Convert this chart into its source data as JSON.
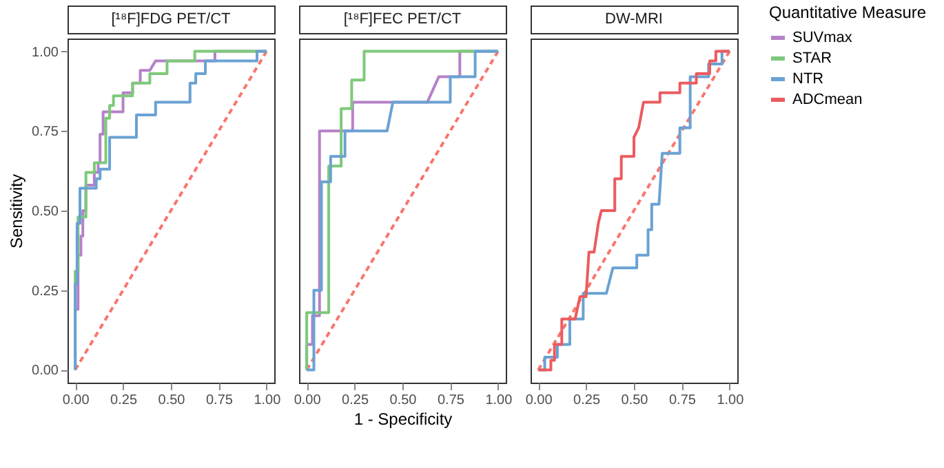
{
  "chart_data": [
    {
      "type": "line",
      "title": "[¹⁸F]FDG PET/CT",
      "ylabel": "Sensitivity",
      "legend_title": "Quantitative Measure",
      "legend": "right",
      "tick_labels": true,
      "grid": false,
      "xlim": [
        -0.04,
        1.04
      ],
      "ylim": [
        -0.04,
        1.04
      ],
      "xticks": [
        {
          "value": 0,
          "label": "0.00"
        },
        {
          "value": 0.25,
          "label": "0.25"
        },
        {
          "value": 0.5,
          "label": "0.50"
        },
        {
          "value": 0.75,
          "label": "0.75"
        },
        {
          "value": 1,
          "label": "1.00"
        }
      ],
      "yticks": [
        {
          "value": 0,
          "label": "0.00"
        },
        {
          "value": 0.25,
          "label": "0.25"
        },
        {
          "value": 0.5,
          "label": "0.50"
        },
        {
          "value": 0.75,
          "label": "0.75"
        },
        {
          "value": 1,
          "label": "1.00"
        }
      ],
      "series": [
        {
          "name": null,
          "color": "#f8766d",
          "line_style": "dashed",
          "x": [
            0,
            1
          ],
          "values": [
            0,
            1
          ]
        },
        {
          "name": "SUVmax",
          "color": "#b681c8",
          "x": [
            0,
            0,
            0.015,
            0.015,
            0.03,
            0.03,
            0.04,
            0.04,
            0.056,
            0.056,
            0.1,
            0.1,
            0.12,
            0.12,
            0.13,
            0.13,
            0.146,
            0.146,
            0.25,
            0.25,
            0.3,
            0.3,
            0.34,
            0.34,
            0.39,
            0.42,
            0.73,
            0.73,
            1
          ],
          "values": [
            0,
            0.19,
            0.19,
            0.36,
            0.36,
            0.42,
            0.42,
            0.5,
            0.5,
            0.58,
            0.58,
            0.62,
            0.62,
            0.65,
            0.65,
            0.74,
            0.74,
            0.81,
            0.81,
            0.87,
            0.87,
            0.9,
            0.9,
            0.94,
            0.94,
            0.97,
            0.97,
            1,
            1
          ]
        },
        {
          "name": "STAR",
          "color": "#7dc97a",
          "x": [
            0,
            0,
            0.015,
            0.015,
            0.056,
            0.056,
            0.1,
            0.1,
            0.16,
            0.16,
            0.18,
            0.18,
            0.2,
            0.2,
            0.3,
            0.3,
            0.39,
            0.39,
            0.48,
            0.48,
            0.625,
            0.625,
            1
          ],
          "values": [
            0,
            0.31,
            0.31,
            0.48,
            0.48,
            0.62,
            0.62,
            0.65,
            0.65,
            0.79,
            0.79,
            0.83,
            0.83,
            0.86,
            0.86,
            0.9,
            0.9,
            0.93,
            0.93,
            0.97,
            0.97,
            1,
            1
          ]
        },
        {
          "name": "NTR",
          "color": "#6aa2d3",
          "x": [
            0,
            0,
            0.01,
            0.01,
            0.025,
            0.025,
            0.11,
            0.11,
            0.13,
            0.13,
            0.18,
            0.18,
            0.32,
            0.32,
            0.42,
            0.42,
            0.6,
            0.6,
            0.63,
            0.63,
            0.68,
            0.68,
            0.95,
            0.95,
            1
          ],
          "values": [
            0,
            0.27,
            0.27,
            0.46,
            0.46,
            0.57,
            0.57,
            0.6,
            0.6,
            0.63,
            0.63,
            0.73,
            0.73,
            0.8,
            0.8,
            0.84,
            0.84,
            0.9,
            0.9,
            0.93,
            0.93,
            0.97,
            0.97,
            1,
            1
          ]
        }
      ]
    },
    {
      "type": "line",
      "title": "[¹⁸F]FEC PET/CT",
      "xlabel": "1 - Specificity",
      "tick_labels": "x",
      "grid": false,
      "xlim": [
        -0.04,
        1.04
      ],
      "ylim": [
        -0.04,
        1.04
      ],
      "xticks": [
        {
          "value": 0,
          "label": "0.00"
        },
        {
          "value": 0.25,
          "label": "0.25"
        },
        {
          "value": 0.5,
          "label": "0.50"
        },
        {
          "value": 0.75,
          "label": "0.75"
        },
        {
          "value": 1,
          "label": "1.00"
        }
      ],
      "yticks": [
        {
          "value": 0,
          "label": "0.00"
        },
        {
          "value": 0.25,
          "label": "0.25"
        },
        {
          "value": 0.5,
          "label": "0.50"
        },
        {
          "value": 0.75,
          "label": "0.75"
        },
        {
          "value": 1,
          "label": "1.00"
        }
      ],
      "series": [
        {
          "name": null,
          "color": "#f8766d",
          "line_style": "dashed",
          "x": [
            0,
            1
          ],
          "values": [
            0,
            1
          ]
        },
        {
          "name": "SUVmax",
          "color": "#b681c8",
          "x": [
            0,
            0,
            0.03,
            0.03,
            0.067,
            0.067,
            0.24,
            0.24,
            0.63,
            0.69,
            0.8,
            0.8,
            1
          ],
          "values": [
            0,
            0.08,
            0.08,
            0.17,
            0.17,
            0.75,
            0.75,
            0.84,
            0.84,
            0.92,
            0.92,
            1,
            1
          ]
        },
        {
          "name": "STAR",
          "color": "#7dc97a",
          "x": [
            0,
            0,
            0.115,
            0.115,
            0.18,
            0.18,
            0.235,
            0.235,
            0.3,
            0.3,
            1
          ],
          "values": [
            0,
            0.18,
            0.18,
            0.64,
            0.64,
            0.82,
            0.82,
            0.91,
            0.91,
            1,
            1
          ]
        },
        {
          "name": "NTR",
          "color": "#6aa2d3",
          "x": [
            0,
            0.0375,
            0.0375,
            0.077,
            0.077,
            0.125,
            0.125,
            0.2,
            0.2,
            0.42,
            0.45,
            0.75,
            0.75,
            0.88,
            0.88,
            1
          ],
          "values": [
            0,
            0,
            0.25,
            0.25,
            0.59,
            0.59,
            0.67,
            0.67,
            0.75,
            0.75,
            0.84,
            0.84,
            0.92,
            0.92,
            1,
            1
          ]
        }
      ]
    },
    {
      "type": "line",
      "title": "DW-MRI",
      "tick_labels": "x",
      "grid": false,
      "xlim": [
        -0.04,
        1.04
      ],
      "ylim": [
        -0.04,
        1.04
      ],
      "xticks": [
        {
          "value": 0,
          "label": "0.00"
        },
        {
          "value": 0.25,
          "label": "0.25"
        },
        {
          "value": 0.5,
          "label": "0.50"
        },
        {
          "value": 0.75,
          "label": "0.75"
        },
        {
          "value": 1,
          "label": "1.00"
        }
      ],
      "yticks": [
        {
          "value": 0,
          "label": "0.00"
        },
        {
          "value": 0.25,
          "label": "0.25"
        },
        {
          "value": 0.5,
          "label": "0.50"
        },
        {
          "value": 0.75,
          "label": "0.75"
        },
        {
          "value": 1,
          "label": "1.00"
        }
      ],
      "series": [
        {
          "name": null,
          "color": "#f8766d",
          "line_style": "dashed",
          "x": [
            0,
            1
          ],
          "values": [
            0,
            1
          ]
        },
        {
          "name": "NTR",
          "color": "#6aa2d3",
          "x": [
            0,
            0.034,
            0.034,
            0.1,
            0.1,
            0.165,
            0.165,
            0.235,
            0.235,
            0.356,
            0.39,
            0.515,
            0.515,
            0.574,
            0.574,
            0.593,
            0.593,
            0.631,
            0.648,
            0.74,
            0.74,
            0.794,
            0.794,
            0.89,
            0.89,
            0.96,
            0.96,
            1
          ],
          "values": [
            0,
            0,
            0.04,
            0.04,
            0.08,
            0.08,
            0.16,
            0.16,
            0.24,
            0.24,
            0.32,
            0.32,
            0.36,
            0.36,
            0.44,
            0.44,
            0.52,
            0.52,
            0.68,
            0.68,
            0.76,
            0.76,
            0.92,
            0.92,
            0.96,
            0.96,
            1,
            1
          ]
        },
        {
          "name": "ADCmean",
          "color": "#ec5b5f",
          "x": [
            0,
            0.066,
            0.066,
            0.085,
            0.085,
            0.123,
            0.123,
            0.193,
            0.218,
            0.25,
            0.265,
            0.292,
            0.314,
            0.33,
            0.4,
            0.4,
            0.434,
            0.434,
            0.5,
            0.5,
            0.525,
            0.55,
            0.636,
            0.636,
            0.74,
            0.74,
            0.826,
            0.826,
            0.896,
            0.896,
            0.928,
            0.928,
            1
          ],
          "values": [
            0,
            0,
            0.03,
            0.03,
            0.08,
            0.08,
            0.16,
            0.16,
            0.23,
            0.23,
            0.37,
            0.37,
            0.46,
            0.5,
            0.5,
            0.6,
            0.6,
            0.67,
            0.67,
            0.73,
            0.76,
            0.84,
            0.84,
            0.87,
            0.87,
            0.9,
            0.9,
            0.93,
            0.93,
            0.97,
            0.97,
            1,
            1
          ]
        }
      ]
    }
  ]
}
